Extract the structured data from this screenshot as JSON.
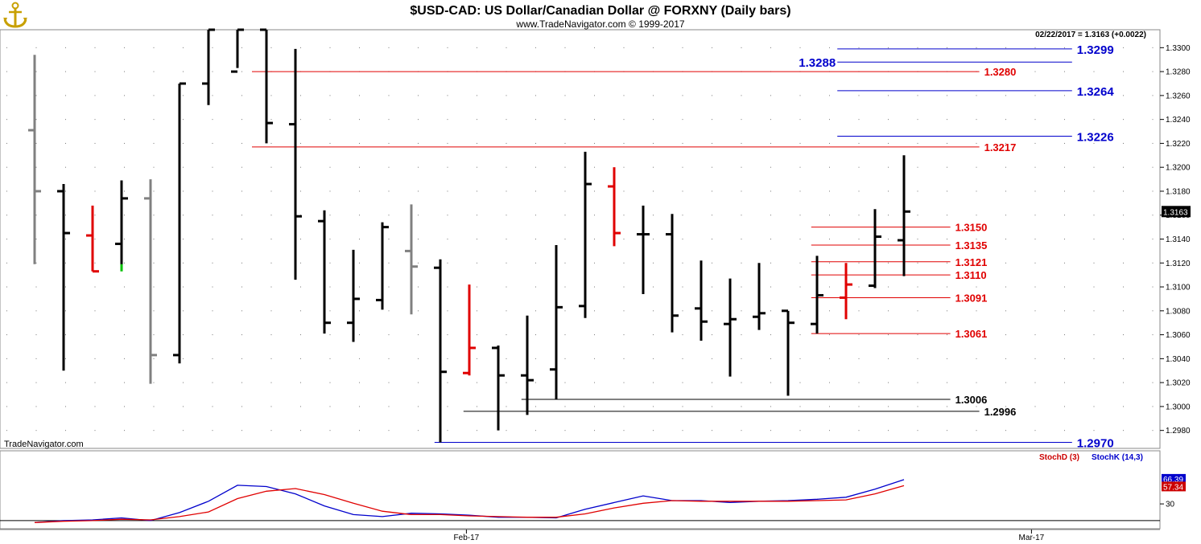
{
  "header": {
    "title": "$USD-CAD:  US Dollar/Canadian Dollar @ FORXNY  (Daily bars)",
    "subtitle": "www.TradeNavigator.com © 1999-2017",
    "quote": "02/22/2017 = 1.3163 (+0.0022)",
    "watermark": "TradeNavigator.com"
  },
  "colors": {
    "background": "#ffffff",
    "up_bar": "#000000",
    "gray_bar": "#808080",
    "red_bar": "#e00000",
    "green_tick": "#00c000",
    "red_level": "#e00000",
    "blue_level": "#0000cc",
    "black_level": "#000000",
    "stoch_d": "#cc0000",
    "stoch_k": "#0000cc"
  },
  "chart_data": [
    {
      "type": "ohlc",
      "title": "$USD-CAD:  US Dollar/Canadian Dollar @ FORXNY  (Daily bars)",
      "ylim": [
        1.2965,
        1.3315
      ],
      "yticks": [
        "1.2980",
        "1.3000",
        "1.3020",
        "1.3040",
        "1.3060",
        "1.3080",
        "1.3100",
        "1.3120",
        "1.3140",
        "1.3160",
        "1.3180",
        "1.3200",
        "1.3220",
        "1.3240",
        "1.3260",
        "1.3280",
        "1.3300"
      ],
      "last_price_label": "1.3163",
      "x_labels": [
        {
          "label": "Feb-17",
          "bar": 14.9
        },
        {
          "label": "Mar-17",
          "bar": 34.4
        }
      ],
      "bars": [
        {
          "o": 1.3231,
          "h": 1.3294,
          "l": 1.3119,
          "c": 1.318,
          "color": "gray"
        },
        {
          "o": 1.318,
          "h": 1.3186,
          "l": 1.303,
          "c": 1.3145,
          "color": "black"
        },
        {
          "o": 1.3143,
          "h": 1.3168,
          "l": 1.3113,
          "c": 1.3113,
          "color": "red"
        },
        {
          "o": 1.3136,
          "h": 1.3189,
          "l": 1.3115,
          "c": 1.3174,
          "color": "black",
          "low_tick": "green"
        },
        {
          "o": 1.3174,
          "h": 1.319,
          "l": 1.3019,
          "c": 1.3043,
          "color": "gray"
        },
        {
          "o": 1.3043,
          "h": 1.327,
          "l": 1.3036,
          "c": 1.327,
          "color": "black"
        },
        {
          "o": 1.327,
          "h": 1.3315,
          "l": 1.3252,
          "c": 1.3315,
          "color": "black"
        },
        {
          "o": 1.328,
          "h": 1.3315,
          "l": 1.3283,
          "c": 1.3315,
          "color": "black"
        },
        {
          "o": 1.3315,
          "h": 1.3315,
          "l": 1.322,
          "c": 1.3237,
          "color": "black"
        },
        {
          "o": 1.3236,
          "h": 1.3299,
          "l": 1.3106,
          "c": 1.3159,
          "color": "black"
        },
        {
          "o": 1.3155,
          "h": 1.3164,
          "l": 1.3061,
          "c": 1.307,
          "color": "black"
        },
        {
          "o": 1.307,
          "h": 1.3131,
          "l": 1.3054,
          "c": 1.309,
          "color": "black"
        },
        {
          "o": 1.3089,
          "h": 1.3154,
          "l": 1.3081,
          "c": 1.315,
          "color": "black"
        },
        {
          "o": 1.313,
          "h": 1.3169,
          "l": 1.3077,
          "c": 1.3117,
          "color": "gray"
        },
        {
          "o": 1.3116,
          "h": 1.3123,
          "l": 1.297,
          "c": 1.3029,
          "color": "black"
        },
        {
          "o": 1.3028,
          "h": 1.3102,
          "l": 1.3026,
          "c": 1.3049,
          "color": "red"
        },
        {
          "o": 1.3049,
          "h": 1.3051,
          "l": 1.298,
          "c": 1.3026,
          "color": "black"
        },
        {
          "o": 1.3026,
          "h": 1.3076,
          "l": 1.2993,
          "c": 1.3022,
          "color": "black"
        },
        {
          "o": 1.3031,
          "h": 1.3135,
          "l": 1.3006,
          "c": 1.3083,
          "color": "black"
        },
        {
          "o": 1.3084,
          "h": 1.3213,
          "l": 1.3074,
          "c": 1.3186,
          "color": "black"
        },
        {
          "o": 1.3184,
          "h": 1.32,
          "l": 1.3134,
          "c": 1.3145,
          "color": "red"
        },
        {
          "o": 1.3144,
          "h": 1.3168,
          "l": 1.3094,
          "c": 1.3144,
          "color": "black"
        },
        {
          "o": 1.3144,
          "h": 1.3161,
          "l": 1.3062,
          "c": 1.3076,
          "color": "black"
        },
        {
          "o": 1.3082,
          "h": 1.3122,
          "l": 1.3055,
          "c": 1.3071,
          "color": "black"
        },
        {
          "o": 1.3069,
          "h": 1.3107,
          "l": 1.3025,
          "c": 1.3073,
          "color": "black"
        },
        {
          "o": 1.3075,
          "h": 1.312,
          "l": 1.3064,
          "c": 1.3078,
          "color": "black"
        },
        {
          "o": 1.308,
          "h": 1.308,
          "l": 1.3009,
          "c": 1.307,
          "color": "black"
        },
        {
          "o": 1.3069,
          "h": 1.3126,
          "l": 1.3061,
          "c": 1.3093,
          "color": "black"
        },
        {
          "o": 1.3091,
          "h": 1.312,
          "l": 1.3073,
          "c": 1.3102,
          "color": "red"
        },
        {
          "o": 1.3101,
          "h": 1.3165,
          "l": 1.3099,
          "c": 1.3142,
          "color": "black"
        },
        {
          "o": 1.3139,
          "h": 1.321,
          "l": 1.3109,
          "c": 1.3163,
          "color": "black"
        }
      ],
      "levels": [
        {
          "label": "1.3299",
          "value": 1.3299,
          "color": "blue",
          "from_bar": 27.7,
          "to_bar": 35.8,
          "label_pos": "right"
        },
        {
          "label": "1.3288",
          "value": 1.3288,
          "color": "blue",
          "from_bar": 27.7,
          "to_bar": 35.8,
          "label_pos": "left"
        },
        {
          "label": "1.3280",
          "value": 1.328,
          "color": "red",
          "from_bar": 7.5,
          "to_bar": 32.6,
          "label_pos": "right"
        },
        {
          "label": "1.3264",
          "value": 1.3264,
          "color": "blue",
          "from_bar": 27.7,
          "to_bar": 35.8,
          "label_pos": "right"
        },
        {
          "label": "1.3226",
          "value": 1.3226,
          "color": "blue",
          "from_bar": 27.7,
          "to_bar": 35.8,
          "label_pos": "right"
        },
        {
          "label": "1.3217",
          "value": 1.3217,
          "color": "red",
          "from_bar": 7.5,
          "to_bar": 32.6,
          "label_pos": "right"
        },
        {
          "label": "1.3150",
          "value": 1.315,
          "color": "red",
          "from_bar": 26.8,
          "to_bar": 31.6,
          "label_pos": "right"
        },
        {
          "label": "1.3135",
          "value": 1.3135,
          "color": "red",
          "from_bar": 26.8,
          "to_bar": 31.6,
          "label_pos": "right"
        },
        {
          "label": "1.3121",
          "value": 1.3121,
          "color": "red",
          "from_bar": 26.8,
          "to_bar": 31.6,
          "label_pos": "right"
        },
        {
          "label": "1.3110",
          "value": 1.311,
          "color": "red",
          "from_bar": 26.8,
          "to_bar": 31.6,
          "label_pos": "right"
        },
        {
          "label": "1.3091",
          "value": 1.3091,
          "color": "red",
          "from_bar": 26.8,
          "to_bar": 31.6,
          "label_pos": "right"
        },
        {
          "label": "1.3061",
          "value": 1.3061,
          "color": "red",
          "from_bar": 26.8,
          "to_bar": 31.6,
          "label_pos": "right"
        },
        {
          "label": "1.3006",
          "value": 1.3006,
          "color": "black",
          "from_bar": 16.8,
          "to_bar": 31.6,
          "label_pos": "right"
        },
        {
          "label": "1.2996",
          "value": 1.2996,
          "color": "black",
          "from_bar": 14.8,
          "to_bar": 32.6,
          "label_pos": "right"
        },
        {
          "label": "1.2970",
          "value": 1.297,
          "color": "blue",
          "from_bar": 13.8,
          "to_bar": 35.8,
          "label_pos": "right"
        }
      ]
    },
    {
      "type": "line",
      "legend": [
        "StochD (3)",
        "StochK (14,3)"
      ],
      "legend_position": "top-right",
      "ylim": [
        0,
        100
      ],
      "yticks": [
        "30"
      ],
      "reference_line": 5,
      "last_values": {
        "StochK (14,3)": "66.39",
        "StochD (3)": "57.34"
      },
      "series": [
        {
          "name": "StochK (14,3)",
          "color": "blue",
          "values": [
            2,
            5,
            6,
            9,
            5,
            17,
            34,
            58,
            56,
            45,
            27,
            14,
            11,
            16,
            15,
            13,
            10,
            10,
            9,
            22,
            32,
            42,
            35,
            35,
            32,
            34,
            35,
            37,
            40,
            52,
            66.4
          ]
        },
        {
          "name": "StochD (3)",
          "color": "red",
          "values": [
            2,
            4,
            5,
            7,
            6,
            11,
            18,
            38,
            49,
            53,
            44,
            31,
            19,
            14,
            14,
            12,
            11,
            10,
            10,
            15,
            24,
            31,
            35,
            34,
            34,
            34,
            34,
            35,
            36,
            45,
            57.3
          ]
        }
      ]
    }
  ]
}
